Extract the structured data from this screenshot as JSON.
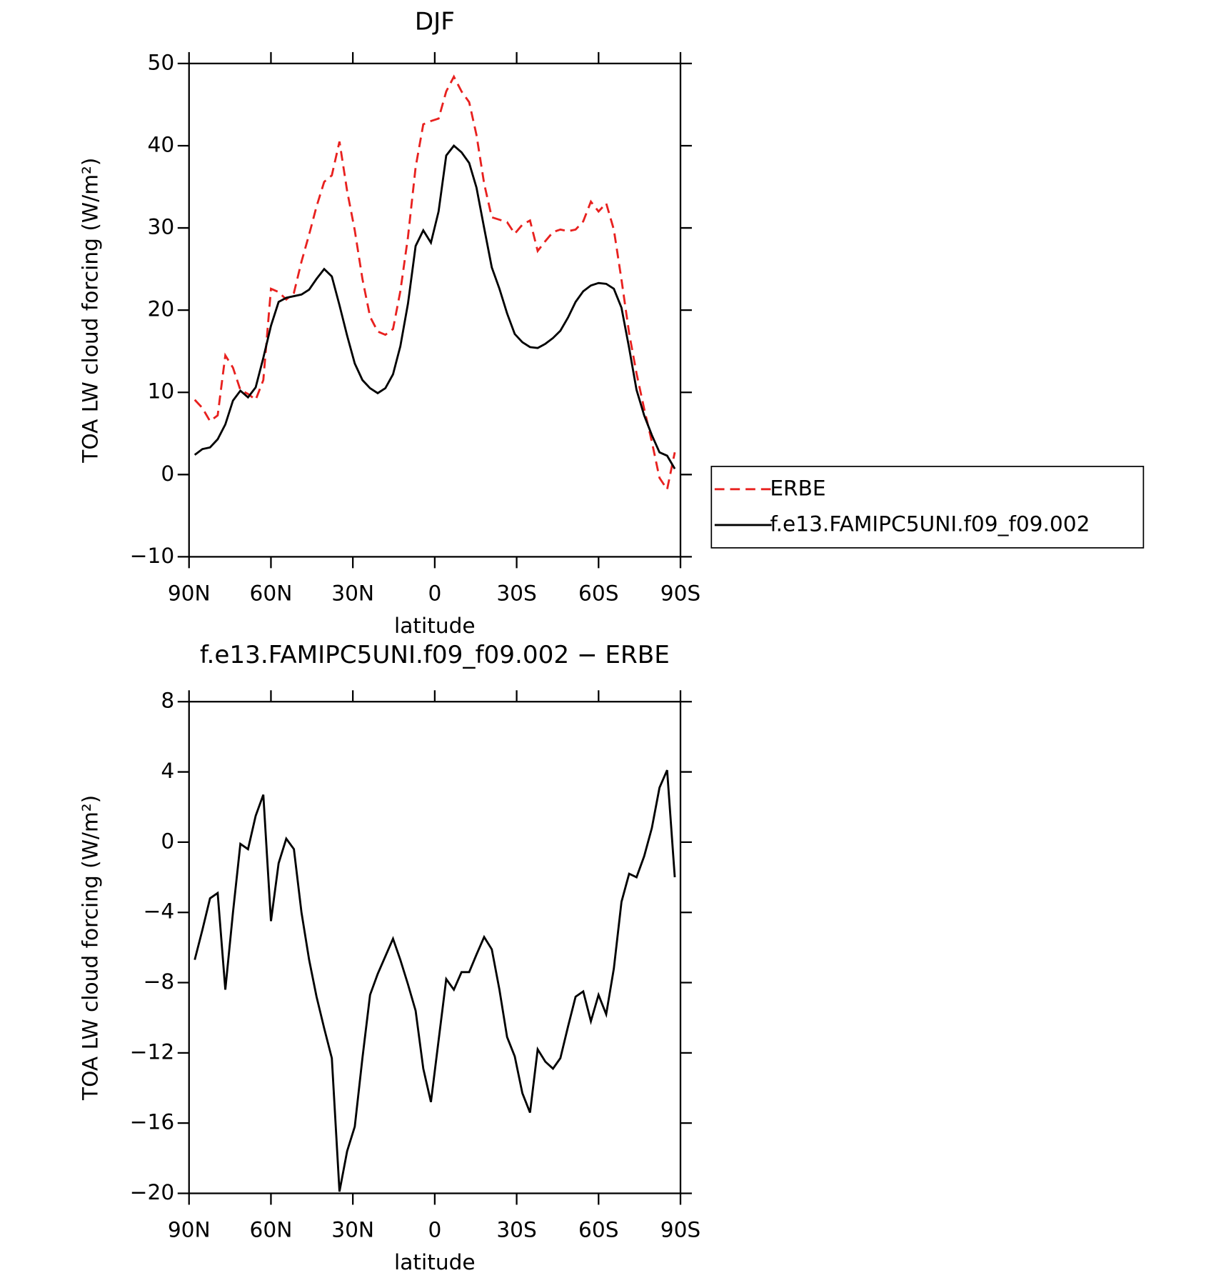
{
  "chart_data": [
    {
      "type": "line",
      "title": "DJF",
      "xlabel": "latitude",
      "ylabel": "TOA LW cloud forcing (W/m²)",
      "x": [
        87.9,
        85.1,
        82.3,
        79.5,
        76.7,
        73.9,
        71.2,
        68.4,
        65.6,
        62.8,
        60.0,
        57.2,
        54.4,
        51.6,
        48.8,
        46.0,
        43.3,
        40.5,
        37.7,
        34.9,
        32.1,
        29.3,
        26.5,
        23.7,
        20.9,
        18.1,
        15.3,
        12.6,
        9.8,
        7.0,
        4.2,
        1.4,
        -1.4,
        -4.2,
        -7.0,
        -9.8,
        -12.6,
        -15.3,
        -18.1,
        -20.9,
        -23.7,
        -26.5,
        -29.3,
        -32.1,
        -34.9,
        -37.7,
        -40.5,
        -43.3,
        -46.0,
        -48.8,
        -51.6,
        -54.4,
        -57.2,
        -60.0,
        -62.8,
        -65.6,
        -68.4,
        -71.2,
        -73.9,
        -76.7,
        -79.5,
        -82.3,
        -85.1,
        -87.9
      ],
      "series": [
        {
          "name": "ERBE",
          "color": "#e8211f",
          "dash": true,
          "values": [
            9.1,
            8.1,
            6.5,
            7.2,
            14.5,
            13.0,
            10.3,
            9.8,
            9.1,
            11.5,
            22.6,
            22.2,
            21.3,
            22.1,
            25.9,
            29.2,
            32.6,
            35.6,
            36.4,
            40.5,
            34.5,
            29.7,
            23.8,
            19.2,
            17.4,
            17.0,
            17.7,
            22.3,
            28.9,
            37.4,
            42.6,
            43.0,
            43.3,
            46.6,
            48.4,
            46.6,
            45.3,
            41.3,
            35.4,
            31.3,
            31.0,
            30.7,
            29.3,
            30.4,
            30.9,
            27.2,
            28.4,
            29.5,
            29.8,
            29.6,
            29.8,
            30.8,
            33.2,
            32.0,
            33.0,
            29.8,
            23.7,
            17.2,
            12.3,
            8.0,
            4.0,
            -0.4,
            -1.8,
            2.7
          ]
        },
        {
          "name": "f.e13.FAMIPC5UNI.f09_f09.002",
          "color": "#000000",
          "dash": false,
          "values": [
            2.4,
            3.1,
            3.3,
            4.3,
            6.1,
            9.0,
            10.2,
            9.4,
            10.6,
            14.2,
            18.1,
            21.0,
            21.5,
            21.7,
            21.9,
            22.5,
            23.8,
            25.0,
            24.1,
            20.6,
            16.9,
            13.5,
            11.5,
            10.5,
            9.9,
            10.5,
            12.2,
            15.6,
            20.8,
            27.8,
            29.7,
            28.2,
            32.0,
            38.8,
            40.0,
            39.2,
            37.9,
            34.9,
            30.0,
            25.2,
            22.6,
            19.6,
            17.1,
            16.1,
            15.5,
            15.4,
            15.9,
            16.6,
            17.5,
            19.1,
            21.0,
            22.3,
            23.0,
            23.3,
            23.2,
            22.6,
            20.3,
            15.4,
            10.3,
            7.2,
            4.8,
            2.7,
            2.3,
            0.7
          ]
        }
      ],
      "xlim": [
        90,
        -90
      ],
      "xticks": [
        {
          "value": 90,
          "label": "90N"
        },
        {
          "value": 60,
          "label": "60N"
        },
        {
          "value": 30,
          "label": "30N"
        },
        0,
        {
          "value": -30,
          "label": "30S"
        },
        {
          "value": -60,
          "label": "60S"
        },
        {
          "value": -90,
          "label": "90S"
        }
      ],
      "ylim": [
        -10,
        50
      ],
      "yticks": [
        {
          "value": -10,
          "label": "−10"
        },
        0,
        10,
        20,
        30,
        40,
        50
      ],
      "legend": "outside-right"
    },
    {
      "type": "line",
      "title": "f.e13.FAMIPC5UNI.f09_f09.002 − ERBE",
      "xlabel": "latitude",
      "ylabel": "TOA LW cloud forcing (W/m²)",
      "x": [
        87.9,
        85.1,
        82.3,
        79.5,
        76.7,
        73.9,
        71.2,
        68.4,
        65.6,
        62.8,
        60.0,
        57.2,
        54.4,
        51.6,
        48.8,
        46.0,
        43.3,
        40.5,
        37.7,
        34.9,
        32.1,
        29.3,
        26.5,
        23.7,
        20.9,
        18.1,
        15.3,
        12.6,
        9.8,
        7.0,
        4.2,
        1.4,
        -1.4,
        -4.2,
        -7.0,
        -9.8,
        -12.6,
        -15.3,
        -18.1,
        -20.9,
        -23.7,
        -26.5,
        -29.3,
        -32.1,
        -34.9,
        -37.7,
        -40.5,
        -43.3,
        -46.0,
        -48.8,
        -51.6,
        -54.4,
        -57.2,
        -60.0,
        -62.8,
        -65.6,
        -68.4,
        -71.2,
        -73.9,
        -76.7,
        -79.5,
        -82.3,
        -85.1,
        -87.9
      ],
      "color": "#000000",
      "values": [
        -6.7,
        -5.0,
        -3.2,
        -2.9,
        -8.4,
        -4.0,
        -0.1,
        -0.4,
        1.5,
        2.7,
        -4.5,
        -1.2,
        0.2,
        -0.4,
        -4.0,
        -6.7,
        -8.8,
        -10.6,
        -12.3,
        -19.9,
        -17.6,
        -16.2,
        -12.3,
        -8.7,
        -7.5,
        -6.5,
        -5.5,
        -6.7,
        -8.1,
        -9.6,
        -12.9,
        -14.8,
        -11.3,
        -7.8,
        -8.4,
        -7.4,
        -7.4,
        -6.4,
        -5.4,
        -6.1,
        -8.4,
        -11.1,
        -12.2,
        -14.3,
        -15.4,
        -11.8,
        -12.5,
        -12.9,
        -12.3,
        -10.5,
        -8.8,
        -8.5,
        -10.2,
        -8.7,
        -9.8,
        -7.2,
        -3.4,
        -1.8,
        -2.0,
        -0.8,
        0.8,
        3.1,
        4.1,
        -2.0
      ],
      "xlim": [
        90,
        -90
      ],
      "xticks": [
        {
          "value": 90,
          "label": "90N"
        },
        {
          "value": 60,
          "label": "60N"
        },
        {
          "value": 30,
          "label": "30N"
        },
        0,
        {
          "value": -30,
          "label": "30S"
        },
        {
          "value": -60,
          "label": "60S"
        },
        {
          "value": -90,
          "label": "90S"
        }
      ],
      "ylim": [
        -20,
        8
      ],
      "yticks": [
        {
          "value": -20,
          "label": "−20"
        },
        {
          "value": -16,
          "label": "−16"
        },
        {
          "value": -12,
          "label": "−12"
        },
        {
          "value": -8,
          "label": "−8"
        },
        {
          "value": -4,
          "label": "−4"
        },
        0,
        4,
        8
      ]
    }
  ]
}
